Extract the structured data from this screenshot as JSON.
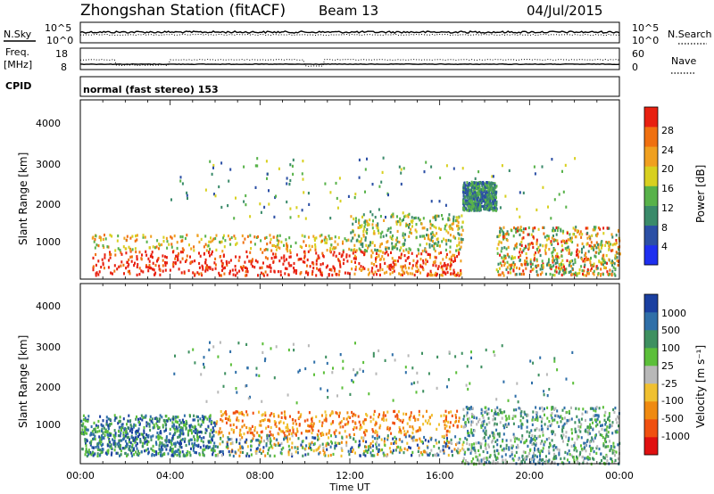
{
  "header": {
    "station": "Zhongshan Station (fitACF)",
    "beam": "Beam 13",
    "date": "04/Jul/2015"
  },
  "noise_panel": {
    "left_label": "N.Sky",
    "right_label": "N.Search",
    "left_ticks": [
      "10^5",
      "10^0"
    ],
    "right_ticks": [
      "10^5",
      "10^0"
    ]
  },
  "freq_panel": {
    "left_label_1": "Freq.",
    "left_label_2": "[MHz]",
    "right_label": "Nave",
    "left_ticks": [
      "18",
      "8"
    ],
    "right_ticks": [
      "60",
      "0"
    ]
  },
  "cpid": {
    "label": "CPID",
    "text": "normal (fast stereo) 153"
  },
  "power_panel": {
    "ylabel": "Slant Range [km]",
    "yticks": [
      "4000",
      "3000",
      "2000",
      "1000"
    ],
    "colorbar_label": "Power [dB]",
    "colorbar_ticks": [
      "28",
      "24",
      "20",
      "16",
      "12",
      "8",
      "4"
    ],
    "colors": [
      "#1e2ff0",
      "#2b4fa5",
      "#3a8a6a",
      "#58b24a",
      "#d8d020",
      "#f0a020",
      "#f07010",
      "#e82010"
    ]
  },
  "velocity_panel": {
    "ylabel": "Slant Range [km]",
    "yticks": [
      "4000",
      "3000",
      "2000",
      "1000"
    ],
    "colorbar_label": "Velocity [m s⁻¹]",
    "colorbar_ticks": [
      "1000",
      "500",
      "100",
      "25",
      "-25",
      "-100",
      "-500",
      "-1000"
    ],
    "colors": [
      "#1a3fa0",
      "#2f6fa8",
      "#3e9060",
      "#5cbf3a",
      "#b8b8b8",
      "#f0c030",
      "#f08a10",
      "#f05010",
      "#e01010"
    ]
  },
  "x_axis": {
    "ticks": [
      "00:00",
      "04:00",
      "08:00",
      "12:00",
      "16:00",
      "20:00",
      "00:00"
    ],
    "label": "Time UT"
  },
  "chart_data": [
    {
      "type": "heatmap",
      "panel": "power",
      "x_range_hours": [
        0,
        24
      ],
      "y_range_km": [
        180,
        4590
      ],
      "bands": [
        {
          "t0": 0.5,
          "t1": 12.0,
          "r0": 300,
          "r1": 1300,
          "level": "strong"
        },
        {
          "t0": 12.0,
          "t1": 17.0,
          "r0": 300,
          "r1": 1800,
          "level": "medium"
        },
        {
          "t0": 17.0,
          "t1": 18.5,
          "r0": 1900,
          "r1": 2600,
          "level": "weak"
        },
        {
          "t0": 18.5,
          "t1": 24.0,
          "r0": 300,
          "r1": 1500,
          "level": "mixed"
        }
      ]
    },
    {
      "type": "heatmap",
      "panel": "velocity",
      "x_range_hours": [
        0,
        24
      ],
      "y_range_km": [
        180,
        4590
      ],
      "bands": [
        {
          "t0": 0.0,
          "t1": 6.0,
          "r0": 400,
          "r1": 1400,
          "level": "mixed-positive"
        },
        {
          "t0": 6.0,
          "t1": 17.0,
          "r0": 400,
          "r1": 1500,
          "level": "negative"
        },
        {
          "t0": 17.0,
          "t1": 24.0,
          "r0": 200,
          "r1": 1600,
          "level": "mixed"
        }
      ]
    }
  ]
}
